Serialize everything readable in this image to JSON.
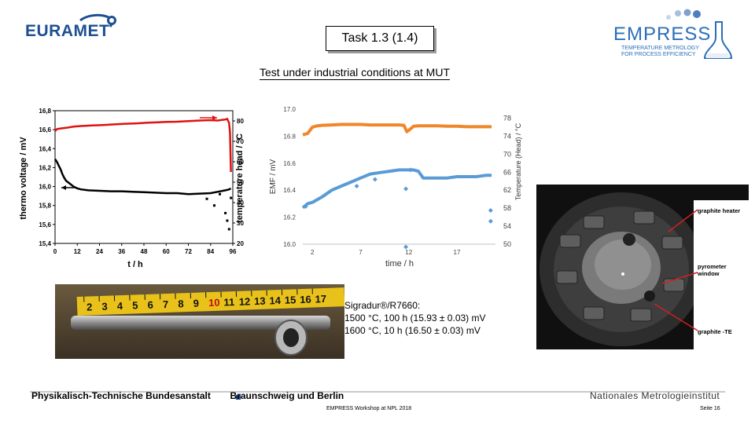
{
  "header": {
    "left_logo_text": "EURAMET",
    "title": "Task 1.3 (1.4)",
    "right_logo_text": "EMPRESS",
    "right_logo_subtitle_1": "TEMPERATURE METROLOGY",
    "right_logo_subtitle_2": "FOR PROCESS EFFICIENCY"
  },
  "subtitle": "Test under industrial conditions at MUT",
  "chart_left": {
    "type": "line",
    "xlabel": "t / h",
    "ylabel_left": "thermo voltage / mV",
    "ylabel_right": "temperature head / °C",
    "x_ticks": [
      "0",
      "12",
      "24",
      "36",
      "48",
      "60",
      "72",
      "84",
      "96"
    ],
    "y_left_ticks": [
      "15,4",
      "15,6",
      "15,8",
      "16,0",
      "16,2",
      "16,4",
      "16,6",
      "16,8"
    ],
    "y_right_ticks": [
      "20",
      "30",
      "40",
      "50",
      "60",
      "70",
      "80"
    ],
    "xlim": [
      0,
      96
    ],
    "ylim_left": [
      15.4,
      16.8
    ],
    "ylim_right": [
      20,
      85
    ],
    "series": [
      {
        "color": "#e01010",
        "axis": "right",
        "x": [
          0,
          1,
          3,
          6,
          10,
          14,
          20,
          26,
          32,
          38,
          44,
          50,
          56,
          60,
          66,
          72,
          78,
          84,
          88,
          90,
          92,
          93,
          94,
          94.5,
          95
        ],
        "y": [
          75,
          76,
          76.3,
          76.6,
          77.2,
          77.5,
          77.8,
          78,
          78.3,
          78.6,
          78.8,
          79.1,
          79.3,
          79.5,
          79.6,
          79.9,
          80.2,
          80.4,
          80.2,
          80.5,
          80.7,
          81,
          79,
          74,
          55
        ]
      },
      {
        "color": "#000000",
        "axis": "left",
        "x": [
          0,
          1,
          2,
          3,
          4,
          5,
          6,
          8,
          10,
          12,
          14,
          18,
          24,
          30,
          36,
          42,
          48,
          54,
          60,
          66,
          72,
          78,
          84,
          88,
          92,
          94,
          95
        ],
        "y": [
          16.29,
          16.26,
          16.22,
          16.18,
          16.13,
          16.09,
          16.06,
          16.03,
          16.0,
          15.98,
          15.97,
          15.96,
          15.955,
          15.95,
          15.95,
          15.945,
          15.94,
          15.935,
          15.93,
          15.93,
          15.92,
          15.925,
          15.93,
          15.945,
          15.96,
          15.97,
          15.98
        ]
      }
    ],
    "outlier_points": [
      [
        82,
        15.87
      ],
      [
        86,
        15.8
      ],
      [
        89,
        15.92
      ],
      [
        92,
        15.72
      ],
      [
        93,
        15.64
      ],
      [
        94,
        15.55
      ],
      [
        95,
        15.88
      ]
    ],
    "arrows": [
      {
        "label": "right-arrow",
        "x": 89,
        "y": 16.7
      },
      {
        "label": "left-arrow",
        "x": 8,
        "y": 15.99
      }
    ]
  },
  "chart_right": {
    "type": "scatter",
    "xlabel": "time / h",
    "ylabel_left": "EMF / mV",
    "ylabel_right": "Temperature (Head) / °C",
    "x_ticks": [
      "2",
      "7",
      "12",
      "17"
    ],
    "x_tick_values": [
      2,
      7,
      12,
      17
    ],
    "y_left_ticks": [
      "16.0",
      "16.2",
      "16.4",
      "16.6",
      "16.8",
      "17.0"
    ],
    "y_right_ticks": [
      "50",
      "54",
      "58",
      "62",
      "66",
      "70",
      "74",
      "78"
    ],
    "xlim": [
      1,
      21
    ],
    "ylim_left": [
      16.0,
      17.0
    ],
    "ylim_right": [
      50,
      80
    ],
    "series": [
      {
        "color": "#f0862a",
        "axis": "right",
        "x": [
          1,
          1.5,
          2,
          2.5,
          3,
          4,
          5,
          6,
          7,
          8,
          9,
          10,
          11,
          11.5,
          11.8,
          12,
          12.5,
          13,
          14,
          15,
          16,
          17,
          18,
          19,
          20,
          20.6
        ],
        "y": [
          74.3,
          74.6,
          76,
          76.3,
          76.4,
          76.5,
          76.6,
          76.6,
          76.6,
          76.5,
          76.5,
          76.5,
          76.5,
          76.4,
          75,
          75.3,
          76.2,
          76.3,
          76.3,
          76.3,
          76.2,
          76.2,
          76.1,
          76.1,
          76.1,
          76.1
        ]
      },
      {
        "color": "#5b9bd5",
        "axis": "left",
        "x": [
          1,
          1.5,
          2,
          3,
          4,
          5,
          6,
          7,
          8,
          9,
          10,
          11,
          11.5,
          12,
          12.5,
          13,
          13.5,
          14,
          15,
          16,
          17,
          18,
          19,
          20,
          20.6
        ],
        "y": [
          16.27,
          16.3,
          16.31,
          16.35,
          16.4,
          16.43,
          16.46,
          16.49,
          16.52,
          16.53,
          16.54,
          16.55,
          16.55,
          16.55,
          16.55,
          16.54,
          16.49,
          16.49,
          16.49,
          16.49,
          16.5,
          16.5,
          16.5,
          16.51,
          16.51
        ]
      }
    ],
    "outlier_points": [
      [
        1.3,
        16.28
      ],
      [
        6.6,
        16.43
      ],
      [
        8.5,
        16.48
      ],
      [
        11.7,
        16.41
      ],
      [
        11.7,
        15.98
      ],
      [
        12.2,
        16.55
      ],
      [
        20.5,
        16.25
      ],
      [
        20.5,
        16.17
      ]
    ]
  },
  "photo_annotations": {
    "graphite_heater": "graphite heater",
    "pyrometer_window_1": "pyrometer",
    "pyrometer_window_2": "window",
    "graphite_te": "graphite -TE"
  },
  "ruler_digits": [
    "2",
    "3",
    "4",
    "5",
    "6",
    "7",
    "8",
    "9",
    "10",
    "11",
    "12",
    "13",
    "14",
    "15",
    "16",
    "17"
  ],
  "material_note": {
    "line1": "Sigradur®/R7660:",
    "line2": "1500 °C, 100 h (15.93 ± 0.03) mV",
    "line3": "1600 °C, 10 h (16.50 ± 0.03) mV"
  },
  "footer": {
    "institution": "Physikalisch-Technische Bundesanstalt",
    "location": "Braunschweig und Berlin",
    "nmi": "Nationales Metrologieinstitut",
    "event": "EMPRESS Workshop at NPL 2018",
    "page": "Seite 16"
  }
}
